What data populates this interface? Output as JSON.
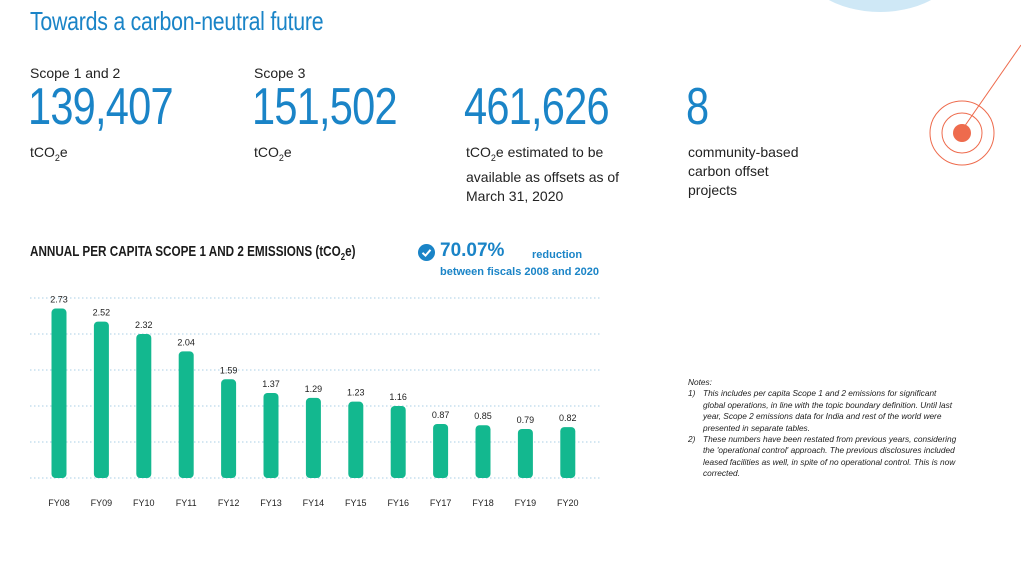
{
  "title": "Towards a carbon-neutral future",
  "metrics": [
    {
      "label": "Scope 1 and 2",
      "value": "139,407",
      "unit_pre": "tCO",
      "unit_sub": "2",
      "unit_post": "e"
    },
    {
      "label": "Scope 3",
      "value": "151,502",
      "unit_pre": "tCO",
      "unit_sub": "2",
      "unit_post": "e"
    },
    {
      "label": "",
      "value": "461,626",
      "unit_pre": "tCO",
      "unit_sub": "2",
      "unit_post": "e estimated to be available as offsets as of March 31, 2020"
    },
    {
      "label": "",
      "value": "8",
      "unit_text": "community-based carbon offset projects"
    }
  ],
  "chart_title": {
    "pre": "ANNUAL PER CAPITA SCOPE 1 AND 2 EMISSIONS (tCO",
    "sub": "2",
    "post": "e)"
  },
  "reduction": {
    "pct": "70.07%",
    "line1": "reduction",
    "line2": "between fiscals 2008 and 2020"
  },
  "notes": {
    "heading": "Notes:",
    "items": [
      {
        "num": "1)",
        "text": "This includes  per capita Scope 1 and 2 emissions for significant global operations, in line with the topic boundary definition. Until last year, Scope 2 emissions data for India and rest of the world were presented in separate tables."
      },
      {
        "num": "2)",
        "text": "These numbers have been restated from previous years, considering the 'operational control' approach. The previous disclosures included leased facilities as well, in spite of no operational control. This is now corrected."
      }
    ]
  },
  "colors": {
    "accent": "#1a84c7",
    "bar": "#13b88f",
    "deco": "#ee6b4d"
  },
  "chart_data": {
    "type": "bar",
    "title": "ANNUAL PER CAPITA SCOPE 1 AND 2 EMISSIONS (tCO2e)",
    "categories": [
      "FY08",
      "FY09",
      "FY10",
      "FY11",
      "FY12",
      "FY13",
      "FY14",
      "FY15",
      "FY16",
      "FY17",
      "FY18",
      "FY19",
      "FY20"
    ],
    "values": [
      2.73,
      2.52,
      2.32,
      2.04,
      1.59,
      1.37,
      1.29,
      1.23,
      1.16,
      0.87,
      0.85,
      0.79,
      0.82
    ],
    "labels": [
      "2.73",
      "2.52",
      "2.32",
      "2.04",
      "1.59",
      "1.37",
      "1.29",
      "1.23",
      "1.16",
      "0.87",
      "0.85",
      "0.79",
      "0.82"
    ],
    "xlabel": "",
    "ylabel": "",
    "ylim": [
      0,
      2.9
    ],
    "grid": true
  }
}
